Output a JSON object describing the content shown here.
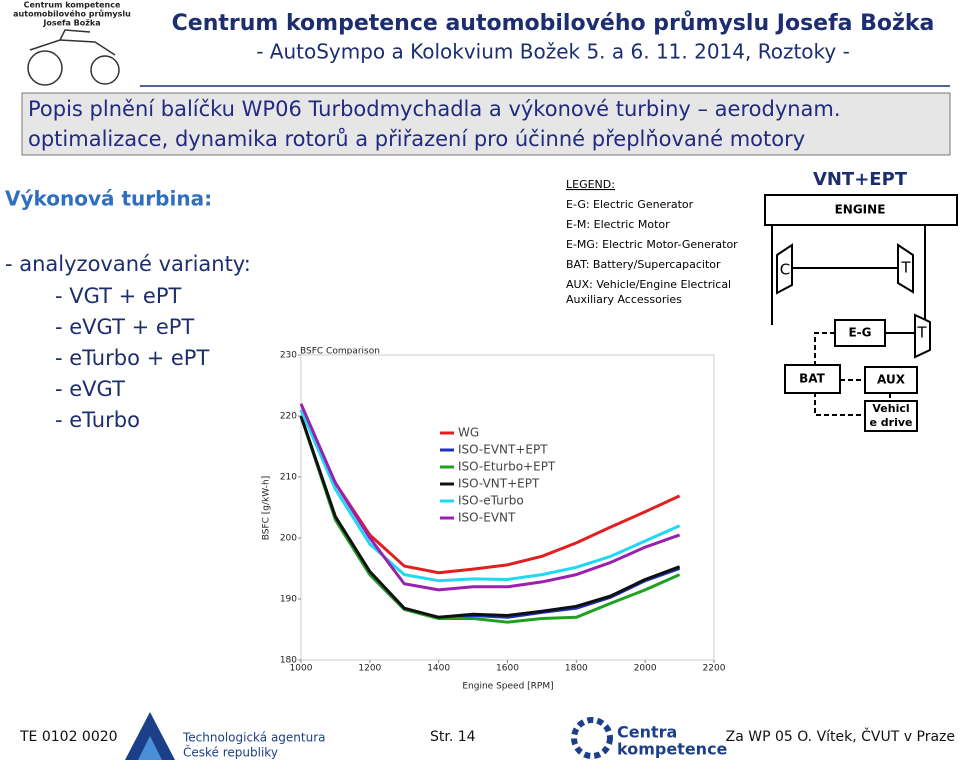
{
  "logo": {
    "lines": [
      "Centrum kompetence",
      "automobilového průmyslu",
      "Josefa Božka"
    ]
  },
  "header": {
    "title": "Centrum kompetence automobilového průmyslu Josefa Božka",
    "subtitle": "- AutoSympo a Kolokvium Božek 5. a 6. 11. 2014, Roztoky -"
  },
  "banner": {
    "lines": [
      "Popis plnění balíčku WP06 Turbodmychadla a výkonové turbiny – aerodynam.",
      "optimalizace, dynamika rotorů a přiřazení pro účinné přeplňované motory"
    ]
  },
  "left": {
    "heading": "Výkonová turbina:",
    "intro": "- analyzované varianty:",
    "items": [
      "- VGT + ePT",
      "- eVGT + ePT",
      "- eTurbo + ePT",
      "- eVGT",
      "- eTurbo"
    ]
  },
  "diagram": {
    "legend_title": "LEGEND:",
    "legend_items": [
      "E-G: Electric Generator",
      "E-M: Electric Motor",
      "E-MG: Electric Motor-Generator",
      "BAT: Battery/Supercapacitor",
      "AUX: Vehicle/Engine Electrical",
      "Auxiliary Accessories"
    ],
    "title": "VNT+EPT",
    "engine": "ENGINE",
    "compressor": "C",
    "turbine": "T",
    "eg": "E-G",
    "power_turbine": "T",
    "bat": "BAT",
    "aux": "AUX",
    "vehicle_drive": [
      "Vehicl",
      "e drive"
    ]
  },
  "chart_data": {
    "type": "line",
    "title": "BSFC Comparison",
    "x_label": "Engine Speed [RPM]",
    "y_label": "BSFC [g/kW-h]",
    "x": [
      1000,
      1100,
      1200,
      1300,
      1400,
      1500,
      1600,
      1700,
      1800,
      1900,
      2000,
      2100
    ],
    "series": [
      {
        "name": "WG",
        "color": "#e02020",
        "values": [
          221,
          209,
          200.5,
          195.4,
          194.3,
          194.9,
          195.6,
          197,
          199.2,
          201.8,
          204.3,
          206.9
        ]
      },
      {
        "name": "ISO-EVNT+EPT",
        "color": "#2030c0",
        "values": [
          220,
          203,
          194,
          188.3,
          187,
          187.3,
          187,
          187.8,
          188.5,
          190.3,
          193,
          195
        ]
      },
      {
        "name": "ISO-Eturbo+EPT",
        "color": "#20a020",
        "values": [
          220,
          203,
          194,
          188.3,
          186.8,
          186.8,
          186.2,
          186.8,
          187,
          189.3,
          191.5,
          194
        ]
      },
      {
        "name": "ISO-VNT+EPT",
        "color": "#101010",
        "values": [
          220,
          203.5,
          194.5,
          188.5,
          187,
          187.5,
          187.3,
          188,
          188.8,
          190.5,
          193.2,
          195.3
        ]
      },
      {
        "name": "ISO-eTurbo",
        "color": "#20d8f0",
        "values": [
          221,
          208,
          199,
          194,
          193,
          193.3,
          193.2,
          194,
          195.2,
          197,
          199.5,
          202
        ]
      },
      {
        "name": "ISO-EVNT",
        "color": "#9a20b0",
        "values": [
          222,
          209,
          200,
          192.5,
          191.5,
          192,
          192,
          192.8,
          194,
          196,
          198.5,
          200.5
        ]
      }
    ],
    "xlim": [
      1000,
      2200
    ],
    "xticks": [
      1000,
      1200,
      1400,
      1600,
      1800,
      2000,
      2200
    ],
    "ylim": [
      180,
      230
    ],
    "yticks": [
      180,
      190,
      200,
      210,
      220,
      230
    ],
    "grid": false
  },
  "footer": {
    "code": "TE 0102 0020",
    "agency": [
      "Technologická agentura",
      "České republiky"
    ],
    "page": "Str. 14",
    "center": [
      "Centra",
      "kompetence"
    ],
    "author": "Za WP 05 O. Vítek, ČVUT v Praze"
  }
}
